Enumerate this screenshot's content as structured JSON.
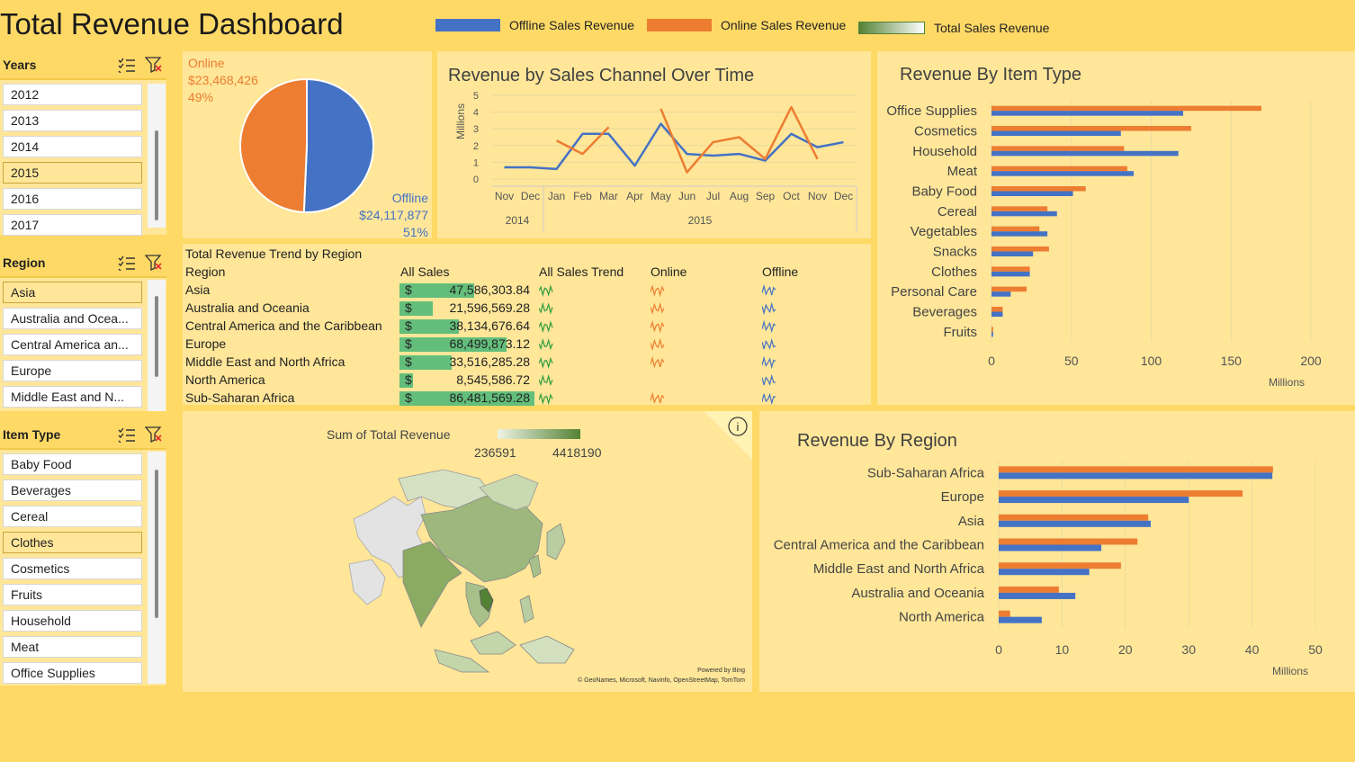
{
  "title": "Total Revenue Dashboard",
  "legend": [
    {
      "label": "Offline Sales Revenue",
      "color": "#4472C4"
    },
    {
      "label": "Online Sales Revenue",
      "color": "#ED7D31"
    },
    {
      "label": "Total Sales Revenue",
      "color": "#548235"
    }
  ],
  "slicers": {
    "years": {
      "title": "Years",
      "items": [
        "2012",
        "2013",
        "2014",
        "2015",
        "2016",
        "2017"
      ],
      "selected": "2015"
    },
    "region": {
      "title": "Region",
      "items": [
        "Asia",
        "Australia and Ocea...",
        "Central America an...",
        "Europe",
        "Middle East and N..."
      ],
      "selected": "Asia"
    },
    "item_type": {
      "title": "Item Type",
      "items": [
        "Baby Food",
        "Beverages",
        "Cereal",
        "Clothes",
        "Cosmetics",
        "Fruits",
        "Household",
        "Meat",
        "Office Supplies"
      ],
      "selected": "Clothes"
    }
  },
  "colors": {
    "offline": "#4472C4",
    "online": "#ED7D31",
    "databar": "#63BE7B",
    "spark_total": "#2E9E3E"
  },
  "chart_data": [
    {
      "type": "pie",
      "slices": [
        {
          "name": "Online",
          "value": 23468426,
          "label": "$23,468,426",
          "percent": "49%"
        },
        {
          "name": "Offline",
          "value": 24117877,
          "label": "$24,117,877",
          "percent": "51%"
        }
      ]
    },
    {
      "type": "line",
      "title": "Revenue by Sales Channel Over Time",
      "ylabel": "Millions",
      "ylim": [
        0,
        5
      ],
      "yticks": [
        "0",
        "1",
        "2",
        "3",
        "4",
        "5"
      ],
      "categories": [
        "Nov",
        "Dec",
        "Jan",
        "Feb",
        "Mar",
        "Apr",
        "May",
        "Jun",
        "Jul",
        "Aug",
        "Sep",
        "Oct",
        "Nov",
        "Dec"
      ],
      "year_groups": [
        {
          "label": "2014",
          "span": 2
        },
        {
          "label": "2015",
          "span": 12
        }
      ],
      "series": [
        {
          "name": "Offline Sales Revenue",
          "color": "#4472C4",
          "values": [
            0.7,
            0.7,
            0.6,
            2.7,
            2.7,
            0.8,
            3.3,
            1.5,
            1.4,
            1.5,
            1.1,
            2.7,
            1.9,
            2.2
          ]
        },
        {
          "name": "Online Sales Revenue",
          "color": "#ED7D31",
          "values": [
            null,
            null,
            2.3,
            1.5,
            3.1,
            null,
            4.2,
            0.4,
            2.2,
            2.5,
            1.2,
            4.3,
            1.2,
            null
          ]
        }
      ]
    },
    {
      "type": "bar",
      "title": "Revenue By Item Type",
      "orientation": "horizontal",
      "xlabel": "Millions",
      "xlim": [
        0,
        200
      ],
      "xticks": [
        "0",
        "50",
        "100",
        "150",
        "200"
      ],
      "categories": [
        "Office Supplies",
        "Cosmetics",
        "Household",
        "Meat",
        "Baby Food",
        "Cereal",
        "Vegetables",
        "Snacks",
        "Clothes",
        "Personal Care",
        "Beverages",
        "Fruits"
      ],
      "series": [
        {
          "name": "Online Sales Revenue",
          "color": "#ED7D31",
          "values": [
            169,
            125,
            83,
            85,
            59,
            35,
            30,
            36,
            24,
            22,
            7,
            1
          ]
        },
        {
          "name": "Offline Sales Revenue",
          "color": "#4472C4",
          "values": [
            120,
            81,
            117,
            89,
            51,
            41,
            35,
            26,
            24,
            12,
            7,
            1
          ]
        }
      ]
    },
    {
      "type": "table",
      "title": "Total Revenue Trend by Region",
      "columns": [
        "Region",
        "All Sales",
        "All Sales Trend",
        "Online",
        "Offline"
      ],
      "rows": [
        {
          "region": "Asia",
          "currency": "$",
          "all_sales": "47,586,303.84",
          "value": 47586303.84
        },
        {
          "region": "Australia and Oceania",
          "currency": "$",
          "all_sales": "21,596,569.28",
          "value": 21596569.28
        },
        {
          "region": "Central America and the Caribbean",
          "currency": "$",
          "all_sales": "38,134,676.64",
          "value": 38134676.64
        },
        {
          "region": "Europe",
          "currency": "$",
          "all_sales": "68,499,873.12",
          "value": 68499873.12
        },
        {
          "region": "Middle East and North Africa",
          "currency": "$",
          "all_sales": "33,516,285.28",
          "value": 33516285.28
        },
        {
          "region": "North America",
          "currency": "$",
          "all_sales": "8,545,586.72",
          "value": 8545586.72
        },
        {
          "region": "Sub-Saharan Africa",
          "currency": "$",
          "all_sales": "86,481,569.28",
          "value": 86481569.28
        }
      ]
    },
    {
      "type": "bar",
      "title": "Revenue By Region",
      "orientation": "horizontal",
      "xlabel": "Millions",
      "xlim": [
        0,
        50
      ],
      "xticks": [
        "0",
        "10",
        "20",
        "30",
        "40",
        "50"
      ],
      "categories": [
        "Sub-Saharan Africa",
        "Europe",
        "Asia",
        "Central America and the Caribbean",
        "Middle East and North Africa",
        "Australia and Oceania",
        "North America"
      ],
      "series": [
        {
          "name": "Online Sales Revenue",
          "color": "#ED7D31",
          "values": [
            43.3,
            38.5,
            23.6,
            21.9,
            19.3,
            9.5,
            1.8
          ]
        },
        {
          "name": "Offline Sales Revenue",
          "color": "#4472C4",
          "values": [
            43.2,
            30.0,
            24.0,
            16.2,
            14.3,
            12.1,
            6.8
          ]
        }
      ]
    }
  ],
  "map": {
    "legend_title": "Sum of  Total Revenue",
    "min_label": "236591",
    "max_label": "4418190",
    "credit_line1": "Powered by Bing",
    "credit_line2": "© GeoNames, Microsoft, Navinfo, OpenStreetMap, TomTom",
    "info_icon": "i"
  }
}
